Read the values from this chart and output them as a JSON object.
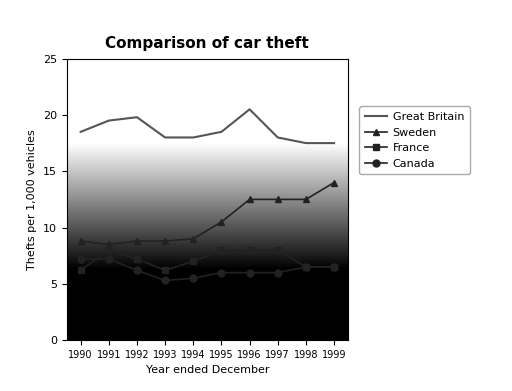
{
  "title": "Comparison of car theft",
  "xlabel": "Year ended December",
  "ylabel": "Thefts per 1,000 vehicles",
  "years": [
    1990,
    1991,
    1992,
    1993,
    1994,
    1995,
    1996,
    1997,
    1998,
    1999
  ],
  "series": {
    "Great Britain": {
      "values": [
        18.5,
        19.5,
        19.8,
        18.0,
        18.0,
        18.5,
        20.5,
        18.0,
        17.5,
        17.5
      ],
      "color": "#555555",
      "linestyle": "-",
      "marker": null,
      "linewidth": 1.5
    },
    "Sweden": {
      "values": [
        8.8,
        8.5,
        8.8,
        8.8,
        9.0,
        10.5,
        12.5,
        12.5,
        12.5,
        14.0
      ],
      "color": "#222222",
      "linestyle": "-",
      "marker": "^",
      "linewidth": 1.2
    },
    "France": {
      "values": [
        6.2,
        8.0,
        7.2,
        6.2,
        7.0,
        8.0,
        8.0,
        8.0,
        6.5,
        6.5
      ],
      "color": "#222222",
      "linestyle": "-",
      "marker": "s",
      "linewidth": 1.2
    },
    "Canada": {
      "values": [
        7.2,
        7.2,
        6.2,
        5.3,
        5.5,
        6.0,
        6.0,
        6.0,
        6.5,
        6.5
      ],
      "color": "#222222",
      "linestyle": "-",
      "marker": "o",
      "linewidth": 1.2
    }
  },
  "ylim": [
    0,
    25
  ],
  "yticks": [
    0,
    5,
    10,
    15,
    20,
    25
  ],
  "fig_bg_color": "#ffffff",
  "legend_order": [
    "Great Britain",
    "Sweden",
    "France",
    "Canada"
  ],
  "markersize": 5,
  "gradient_top": "#999999",
  "gradient_bottom": "#d8d8d8"
}
